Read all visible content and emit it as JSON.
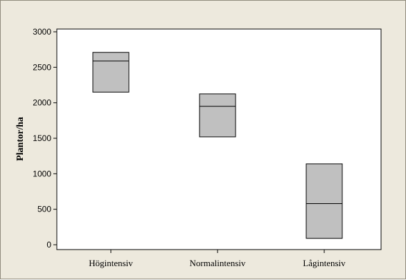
{
  "chart_data": {
    "type": "box",
    "title": "",
    "xlabel": "",
    "ylabel": "Plantor/ha",
    "ylim": [
      0,
      3000
    ],
    "yticks": [
      0,
      500,
      1000,
      1500,
      2000,
      2500,
      3000
    ],
    "grid": false,
    "legend": "none",
    "categories": [
      "Högintensiv",
      "Normalintensiv",
      "Lågintensiv"
    ],
    "boxes": [
      {
        "category": "Högintensiv",
        "q1": 2150,
        "median": 2590,
        "q3": 2710
      },
      {
        "category": "Normalintensiv",
        "q1": 1520,
        "median": 1950,
        "q3": 2125
      },
      {
        "category": "Lågintensiv",
        "q1": 90,
        "median": 580,
        "q3": 1140
      }
    ],
    "colors": {
      "box_fill": "#c0c0c0",
      "box_stroke": "#000000",
      "plot_background": "#ffffff",
      "frame_background": "#ede9dd"
    }
  }
}
